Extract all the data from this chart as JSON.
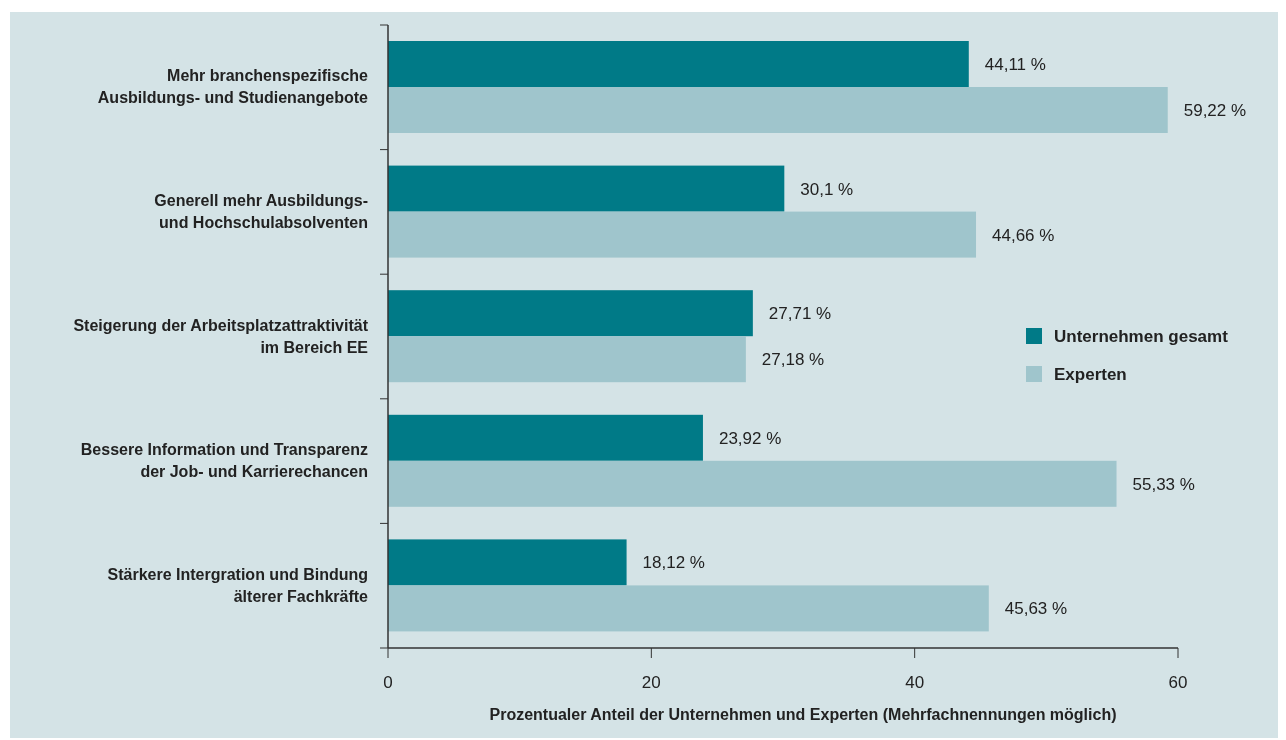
{
  "chart_data": {
    "type": "bar",
    "orientation": "horizontal",
    "categories": [
      "Mehr branchenspezifische\nAusbildungs- und Studienangebote",
      "Generell mehr Ausbildungs-\nund Hochschulabsolventen",
      "Steigerung der Arbeitsplatzattraktivität\nim Bereich EE",
      "Bessere Information und Transparenz\nder Job- und Karrierechancen",
      "Stärkere Intergration und Bindung\nälterer Fachkräfte"
    ],
    "series": [
      {
        "name": "Unternehmen gesamt",
        "color": "#007a87",
        "values": [
          44.11,
          30.1,
          27.71,
          23.92,
          18.12
        ],
        "value_labels": [
          "44,11 %",
          "30,1 %",
          "27,71 %",
          "23,92 %",
          "18,12 %"
        ]
      },
      {
        "name": "Experten",
        "color": "#9fc5cc",
        "values": [
          59.22,
          44.66,
          27.18,
          55.33,
          45.63
        ],
        "value_labels": [
          "59,22 %",
          "44,66 %",
          "27,18 %",
          "55,33 %",
          "45,63 %"
        ]
      }
    ],
    "xlim": [
      0,
      60
    ],
    "xticks": [
      0,
      20,
      40,
      60
    ],
    "xlabel": "Prozentualer Anteil der Unternehmen und Experten (Mehrfachnennungen möglich)",
    "legend": "right",
    "grid": false
  }
}
